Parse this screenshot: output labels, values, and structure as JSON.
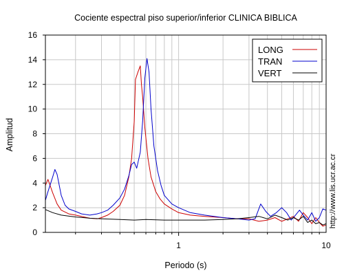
{
  "chart_data": {
    "type": "line",
    "title": "Cociente espectral piso superior/inferior  CLINICA BIBLICA",
    "xlabel": "Periodo (s)",
    "ylabel": "Amplitud",
    "x_scale": "log",
    "xlim": [
      0.125,
      10
    ],
    "ylim": [
      0,
      16
    ],
    "x_ticks": [
      1,
      10
    ],
    "x_tick_labels": [
      "1",
      "10"
    ],
    "y_ticks": [
      0,
      2,
      4,
      6,
      8,
      10,
      12,
      14,
      16
    ],
    "y_tick_labels": [
      "0",
      "2",
      "4",
      "6",
      "8",
      "10",
      "12",
      "14",
      "16"
    ],
    "grid": true,
    "legend_position": "top-right",
    "side_text": "http://www.lis.ucr.ac.cr",
    "series": [
      {
        "name": "LONG",
        "color": "#cc0000",
        "points": [
          [
            0.125,
            3.8
          ],
          [
            0.13,
            4.3
          ],
          [
            0.14,
            3.2
          ],
          [
            0.15,
            2.3
          ],
          [
            0.16,
            1.8
          ],
          [
            0.18,
            1.5
          ],
          [
            0.2,
            1.4
          ],
          [
            0.22,
            1.3
          ],
          [
            0.25,
            1.15
          ],
          [
            0.28,
            1.1
          ],
          [
            0.3,
            1.2
          ],
          [
            0.33,
            1.4
          ],
          [
            0.36,
            1.7
          ],
          [
            0.4,
            2.2
          ],
          [
            0.43,
            3.0
          ],
          [
            0.46,
            4.5
          ],
          [
            0.48,
            6.0
          ],
          [
            0.5,
            9.0
          ],
          [
            0.51,
            12.4
          ],
          [
            0.53,
            13.0
          ],
          [
            0.55,
            13.5
          ],
          [
            0.56,
            12.0
          ],
          [
            0.57,
            11.0
          ],
          [
            0.59,
            8.5
          ],
          [
            0.62,
            6.0
          ],
          [
            0.65,
            4.5
          ],
          [
            0.7,
            3.3
          ],
          [
            0.75,
            2.7
          ],
          [
            0.8,
            2.3
          ],
          [
            0.9,
            1.9
          ],
          [
            1.0,
            1.6
          ],
          [
            1.2,
            1.4
          ],
          [
            1.5,
            1.3
          ],
          [
            2.0,
            1.2
          ],
          [
            2.5,
            1.1
          ],
          [
            3.0,
            1.1
          ],
          [
            3.5,
            0.9
          ],
          [
            4.0,
            1.0
          ],
          [
            4.5,
            1.2
          ],
          [
            5.0,
            0.9
          ],
          [
            5.5,
            1.1
          ],
          [
            6.0,
            1.3
          ],
          [
            6.5,
            0.9
          ],
          [
            7.0,
            1.6
          ],
          [
            7.5,
            1.2
          ],
          [
            8.0,
            0.7
          ],
          [
            8.5,
            1.2
          ],
          [
            9.0,
            0.8
          ],
          [
            9.5,
            0.5
          ],
          [
            10.0,
            0.6
          ]
        ]
      },
      {
        "name": "TRAN",
        "color": "#0000cc",
        "points": [
          [
            0.125,
            2.6
          ],
          [
            0.13,
            3.3
          ],
          [
            0.14,
            4.5
          ],
          [
            0.145,
            5.1
          ],
          [
            0.15,
            4.7
          ],
          [
            0.16,
            3.0
          ],
          [
            0.17,
            2.2
          ],
          [
            0.18,
            1.9
          ],
          [
            0.2,
            1.7
          ],
          [
            0.22,
            1.5
          ],
          [
            0.25,
            1.4
          ],
          [
            0.28,
            1.5
          ],
          [
            0.3,
            1.6
          ],
          [
            0.33,
            1.8
          ],
          [
            0.36,
            2.2
          ],
          [
            0.4,
            2.8
          ],
          [
            0.43,
            3.5
          ],
          [
            0.46,
            4.6
          ],
          [
            0.48,
            5.5
          ],
          [
            0.5,
            5.7
          ],
          [
            0.52,
            5.2
          ],
          [
            0.55,
            6.5
          ],
          [
            0.57,
            9.0
          ],
          [
            0.59,
            12.5
          ],
          [
            0.61,
            14.1
          ],
          [
            0.63,
            13.0
          ],
          [
            0.65,
            10.0
          ],
          [
            0.68,
            7.0
          ],
          [
            0.72,
            5.0
          ],
          [
            0.76,
            3.8
          ],
          [
            0.8,
            3.0
          ],
          [
            0.9,
            2.3
          ],
          [
            1.0,
            2.0
          ],
          [
            1.2,
            1.6
          ],
          [
            1.5,
            1.4
          ],
          [
            2.0,
            1.2
          ],
          [
            2.5,
            1.1
          ],
          [
            3.0,
            1.0
          ],
          [
            3.3,
            1.1
          ],
          [
            3.6,
            2.3
          ],
          [
            3.9,
            1.7
          ],
          [
            4.2,
            1.3
          ],
          [
            4.6,
            1.6
          ],
          [
            5.0,
            2.0
          ],
          [
            5.4,
            1.6
          ],
          [
            5.8,
            1.0
          ],
          [
            6.2,
            1.4
          ],
          [
            6.6,
            1.8
          ],
          [
            7.0,
            1.4
          ],
          [
            7.5,
            1.0
          ],
          [
            8.0,
            1.6
          ],
          [
            8.5,
            0.9
          ],
          [
            9.0,
            1.2
          ],
          [
            9.5,
            1.9
          ],
          [
            10.0,
            1.8
          ]
        ]
      },
      {
        "name": "VERT",
        "color": "#000000",
        "points": [
          [
            0.125,
            1.85
          ],
          [
            0.14,
            1.6
          ],
          [
            0.16,
            1.4
          ],
          [
            0.2,
            1.25
          ],
          [
            0.25,
            1.15
          ],
          [
            0.3,
            1.1
          ],
          [
            0.4,
            1.05
          ],
          [
            0.5,
            1.0
          ],
          [
            0.6,
            1.05
          ],
          [
            0.8,
            1.0
          ],
          [
            1.0,
            1.0
          ],
          [
            1.5,
            1.0
          ],
          [
            2.0,
            1.05
          ],
          [
            2.5,
            1.1
          ],
          [
            3.0,
            1.2
          ],
          [
            3.5,
            1.3
          ],
          [
            4.0,
            1.1
          ],
          [
            4.5,
            1.4
          ],
          [
            5.0,
            1.2
          ],
          [
            5.5,
            1.0
          ],
          [
            6.0,
            1.2
          ],
          [
            6.5,
            1.0
          ],
          [
            7.0,
            1.3
          ],
          [
            7.5,
            0.8
          ],
          [
            8.0,
            1.0
          ],
          [
            8.5,
            0.7
          ],
          [
            9.0,
            0.8
          ],
          [
            9.5,
            0.6
          ],
          [
            10.0,
            0.7
          ]
        ]
      }
    ]
  }
}
